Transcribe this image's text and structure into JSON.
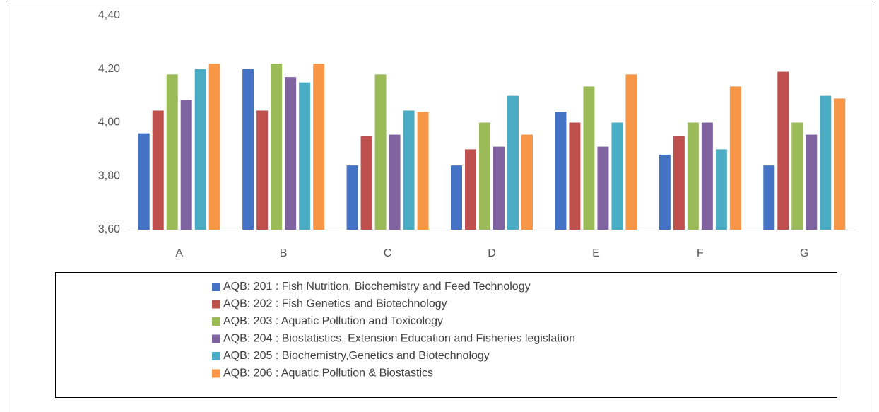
{
  "chart_data": {
    "type": "bar",
    "categories": [
      "A",
      "B",
      "C",
      "D",
      "E",
      "F",
      "G"
    ],
    "series": [
      {
        "name": "AQB: 201 : Fish Nutrition, Biochemistry and Feed Technology",
        "color": "#4472c4",
        "values": [
          3.96,
          4.2,
          3.84,
          3.84,
          4.04,
          3.88,
          3.84
        ]
      },
      {
        "name": "AQB: 202 : Fish Genetics and Biotechnology",
        "color": "#c0504d",
        "values": [
          4.045,
          4.045,
          3.95,
          3.9,
          4.0,
          3.95,
          4.19
        ]
      },
      {
        "name": "AQB: 203 : Aquatic Pollution and Toxicology",
        "color": "#9bbb59",
        "values": [
          4.18,
          4.22,
          4.18,
          4.0,
          4.135,
          4.0,
          4.0
        ]
      },
      {
        "name": "AQB: 204 : Biostatistics, Extension Education and Fisheries legislation",
        "color": "#8064a2",
        "values": [
          4.085,
          4.17,
          3.955,
          3.91,
          3.91,
          4.0,
          3.955
        ]
      },
      {
        "name": "AQB: 205 : Biochemistry,Genetics and Biotechnology",
        "color": "#4bacc6",
        "values": [
          4.2,
          4.15,
          4.045,
          4.1,
          4.0,
          3.9,
          4.1
        ]
      },
      {
        "name": "AQB: 206 : Aquatic Pollution & Biostastics",
        "color": "#f79646",
        "values": [
          4.22,
          4.22,
          4.04,
          3.955,
          4.18,
          4.135,
          4.09
        ]
      }
    ],
    "ylim": [
      3.6,
      4.4
    ],
    "yticks": [
      {
        "value": 3.6,
        "label": "3,60"
      },
      {
        "value": 3.8,
        "label": "3,80"
      },
      {
        "value": 4.0,
        "label": "4,00"
      },
      {
        "value": 4.2,
        "label": "4,20"
      },
      {
        "value": 4.4,
        "label": "4,40"
      }
    ],
    "grid": false,
    "legend": "bottom"
  }
}
